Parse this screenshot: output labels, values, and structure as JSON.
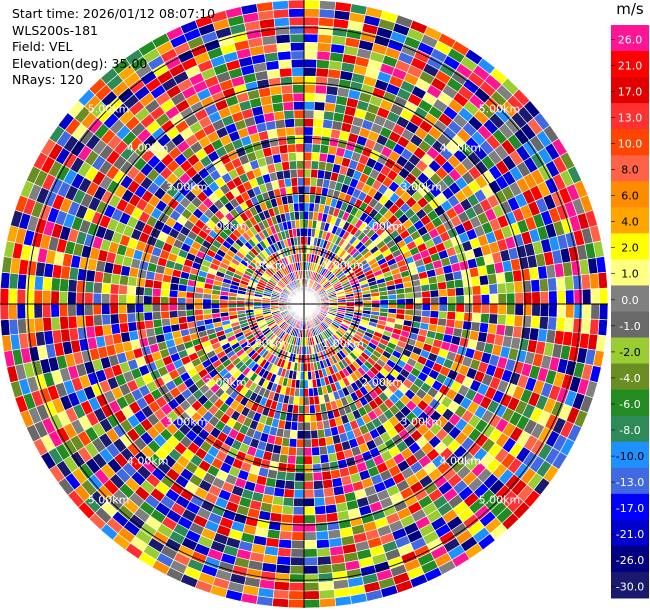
{
  "header": {
    "start_time": "Start time: 2026/01/12 08:07:10",
    "instrument": "WLS200s-181",
    "field": "Field: VEL",
    "elevation": "Elevation(deg): 35.00",
    "nrays": "NRays: 120"
  },
  "colorbar": {
    "unit": "m/s",
    "ticks": [
      "26.0",
      "21.0",
      "17.0",
      "13.0",
      "10.0",
      "8.0",
      "6.0",
      "4.0",
      "2.0",
      "1.0",
      "0.0",
      "-1.0",
      "-2.0",
      "-4.0",
      "-6.0",
      "-8.0",
      "-10.0",
      "-13.0",
      "-17.0",
      "-21.0",
      "-26.0",
      "-30.0"
    ],
    "colors": [
      "#ff1493",
      "#ff0000",
      "#e00000",
      "#ff3030",
      "#ff4500",
      "#ff6347",
      "#ff8c00",
      "#ffa500",
      "#ffff00",
      "#ffff80",
      "#808080",
      "#696969",
      "#9acd32",
      "#6b8e23",
      "#228b22",
      "#2e8b57",
      "#1e90ff",
      "#4169e1",
      "#0000ff",
      "#0000cd",
      "#000080",
      "#191970"
    ]
  },
  "chart_data": {
    "type": "heatmap",
    "projection": "polar (PPI)",
    "field": "VEL",
    "units": "m/s",
    "nrays": 120,
    "elevation_deg": 35.0,
    "range_rings_km": [
      1.0,
      2.0,
      3.0,
      4.0,
      5.0
    ],
    "range_ring_labels": [
      "1.00km",
      "2.00km",
      "3.00km",
      "4.00km",
      "5.00km"
    ],
    "color_levels": [
      -30.0,
      -26.0,
      -21.0,
      -17.0,
      -13.0,
      -10.0,
      -8.0,
      -6.0,
      -4.0,
      -2.0,
      -1.0,
      0.0,
      1.0,
      2.0,
      4.0,
      6.0,
      8.0,
      10.0,
      13.0,
      17.0,
      21.0,
      26.0
    ],
    "max_range_km": 5.5,
    "grid": true
  }
}
